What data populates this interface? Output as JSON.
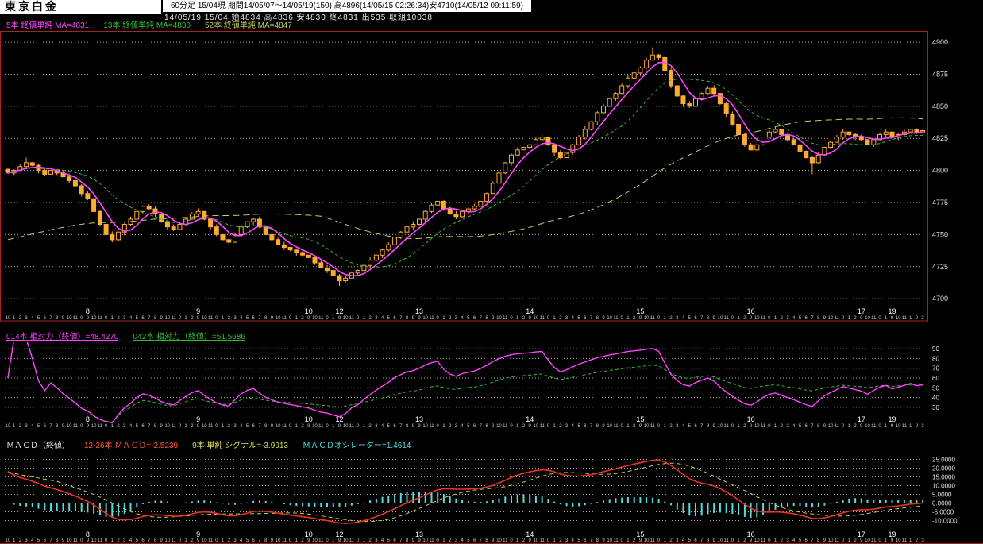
{
  "header": {
    "title": "東京白金",
    "info_line": "60分足 15/04現  期間14/05/07～14/05/19(150)  高4896(14/05/15 02:26:34)安4710(14/05/12 09:11:59)",
    "quote_line": "14/05/19 15/04 始4834 高4836 安4830 終4831 出535 取組10038"
  },
  "ma_legend": [
    {
      "label": "5本 終値単純 MA=4831",
      "color": "#ff44ff",
      "name": "ma5-legend"
    },
    {
      "label": "13本 終値単純 MA=4830",
      "color": "#33bb33",
      "name": "ma13-legend"
    },
    {
      "label": "52本 終値単純 MA=4847",
      "color": "#cccc55",
      "name": "ma52-legend"
    }
  ],
  "rsi_legend": [
    {
      "label": "014本 相対力（終値）=48.4270",
      "color": "#ff44ff",
      "name": "rsi14-legend"
    },
    {
      "label": "042本 相対力（終値）=51.5686",
      "color": "#33bb33",
      "name": "rsi42-legend"
    }
  ],
  "macd_legend": [
    {
      "label": "ＭＡＣＤ（終値）",
      "color": "#e8e8e8",
      "underline": false,
      "name": "macd-title"
    },
    {
      "label": "12-26本 ＭＡＣＤ=-2.5239",
      "color": "#ff5533",
      "name": "macd-value-legend"
    },
    {
      "label": "9本 単純 シグナル=-3.9913",
      "color": "#dddd55",
      "name": "macd-signal-legend"
    },
    {
      "label": "ＭＡＣＤオシレーター=1.4614",
      "color": "#55dddd",
      "name": "macd-osc-legend"
    }
  ],
  "chart_data": {
    "type": "candlestick",
    "title": "東京白金 60分足 (Tokyo Platinum 60-min)",
    "period_bars": 150,
    "session_high": 4896,
    "session_low": 4710,
    "price_axis": [
      4900,
      4875,
      4850,
      4825,
      4800,
      4775,
      4750,
      4725,
      4700
    ],
    "price_range": [
      4697,
      4905
    ],
    "ma": {
      "periods": [
        5,
        13,
        52
      ],
      "last": [
        4831,
        4830,
        4847
      ]
    },
    "rsi": {
      "periods": [
        14,
        42
      ],
      "axis": [
        90,
        80,
        70,
        60,
        50,
        40,
        30
      ],
      "range": [
        25,
        95
      ],
      "last": [
        48.427,
        51.5686
      ]
    },
    "macd": {
      "fast": 12,
      "slow": 26,
      "signal_period": 9,
      "axis": [
        "25.0000",
        "20.0000",
        "15.0000",
        "10.0000",
        "5.0000",
        "0.0000",
        "-5.0000",
        "-10.0000"
      ],
      "range": [
        -12.5,
        27.5
      ],
      "last": {
        "macd": -2.5239,
        "signal": -3.9913,
        "oscillator": 1.4614
      }
    },
    "days": [
      {
        "date": "",
        "hours": [
          "10",
          "1",
          "2",
          "3",
          "4",
          "5",
          "6",
          "7",
          "8",
          "9",
          "10",
          "11",
          "0"
        ]
      },
      {
        "date": "8",
        "hours": [
          "9",
          "10",
          "11",
          "0",
          "1",
          "2",
          "3",
          "4",
          "5",
          "6",
          "7",
          "8",
          "9",
          "10",
          "11",
          "0",
          "1",
          "2"
        ]
      },
      {
        "date": "9",
        "hours": [
          "9",
          "10",
          "11",
          "0",
          "1",
          "2",
          "3",
          "4",
          "5",
          "6",
          "7",
          "8",
          "9",
          "10",
          "11",
          "0",
          "1",
          "2"
        ]
      },
      {
        "date": "10",
        "hours": [
          "9",
          "10",
          "11",
          "0",
          "1"
        ]
      },
      {
        "date": "12",
        "hours": [
          "9",
          "10",
          "11",
          "0",
          "1",
          "2",
          "3",
          "4",
          "5",
          "6",
          "7",
          "8",
          "9"
        ]
      },
      {
        "date": "13",
        "hours": [
          "9",
          "10",
          "11",
          "0",
          "1",
          "2",
          "3",
          "4",
          "5",
          "6",
          "7",
          "8",
          "9",
          "10",
          "11",
          "0",
          "1",
          "2"
        ]
      },
      {
        "date": "14",
        "hours": [
          "9",
          "10",
          "11",
          "0",
          "1",
          "2",
          "3",
          "4",
          "5",
          "6",
          "7",
          "8",
          "9",
          "10",
          "11",
          "0",
          "1",
          "2"
        ]
      },
      {
        "date": "15",
        "hours": [
          "9",
          "10",
          "11",
          "0",
          "1",
          "2",
          "3",
          "4",
          "5",
          "6",
          "7",
          "8",
          "9",
          "10",
          "11",
          "0",
          "1",
          "2"
        ]
      },
      {
        "date": "16",
        "hours": [
          "9",
          "10",
          "11",
          "0",
          "1",
          "2",
          "3",
          "4",
          "5",
          "6",
          "7",
          "8",
          "9",
          "10",
          "11",
          "0",
          "1",
          "2"
        ]
      },
      {
        "date": "17",
        "hours": [
          "9",
          "10",
          "11",
          "0",
          "1"
        ]
      },
      {
        "date": "19",
        "hours": [
          "9",
          "10",
          "11",
          "1",
          "2",
          "3"
        ]
      }
    ],
    "closes": [
      4798,
      4800,
      4803,
      4806,
      4804,
      4800,
      4797,
      4800,
      4798,
      4795,
      4792,
      4788,
      4782,
      4778,
      4768,
      4758,
      4750,
      4746,
      4752,
      4758,
      4762,
      4768,
      4772,
      4770,
      4766,
      4760,
      4756,
      4754,
      4758,
      4762,
      4766,
      4768,
      4762,
      4756,
      4750,
      4746,
      4744,
      4750,
      4756,
      4760,
      4762,
      4756,
      4750,
      4746,
      4742,
      4740,
      4738,
      4736,
      4734,
      4732,
      4728,
      4724,
      4722,
      4718,
      4714,
      4716,
      4720,
      4722,
      4726,
      4730,
      4734,
      4738,
      4742,
      4748,
      4752,
      4756,
      4758,
      4762,
      4768,
      4773,
      4776,
      4770,
      4766,
      4764,
      4768,
      4770,
      4772,
      4776,
      4782,
      4790,
      4798,
      4806,
      4812,
      4816,
      4818,
      4820,
      4824,
      4826,
      4820,
      4814,
      4810,
      4814,
      4820,
      4826,
      4832,
      4838,
      4845,
      4850,
      4856,
      4860,
      4866,
      4872,
      4876,
      4880,
      4886,
      4890,
      4888,
      4878,
      4866,
      4858,
      4852,
      4850,
      4856,
      4860,
      4864,
      4860,
      4852,
      4844,
      4836,
      4828,
      4820,
      4816,
      4820,
      4826,
      4830,
      4832,
      4828,
      4824,
      4820,
      4815,
      4810,
      4806,
      4812,
      4818,
      4822,
      4826,
      4830,
      4828,
      4826,
      4824,
      4820,
      4824,
      4828,
      4830,
      4826,
      4828,
      4830,
      4832,
      4830,
      4831
    ],
    "extremes": {
      "3": {
        "high": 4810
      },
      "54": {
        "low": 4710
      },
      "105": {
        "high": 4896
      },
      "131": {
        "low": 4797
      }
    },
    "colors": {
      "candle": "#ffaa33",
      "ma5": "#ff44ff",
      "ma13": "#33bb33",
      "ma52": "#cccc55",
      "rsi14": "#ff44ff",
      "rsi42": "#33bb33",
      "macd": "#ee3322",
      "signal": "#cccc55",
      "hist": "#55dddd",
      "grid": "#aaaaaa",
      "frame": "#aa2222",
      "axis_text": "#e0e0e0",
      "date_text": "#ffffff",
      "hour_text": "#c8c8c8"
    }
  }
}
